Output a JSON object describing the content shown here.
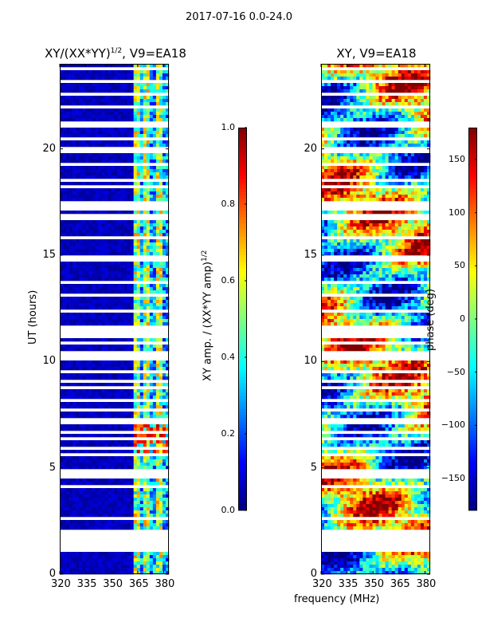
{
  "suptitle": "2017-07-16 0.0-24.0",
  "chart_data": [
    {
      "type": "heatmap",
      "title": "XY/(XX*YY)^1/2, V9=EA18",
      "title_main": "XY/(XX*YY)",
      "title_sup": "1/2",
      "title_tail": ", V9=EA18",
      "xlabel": "frequency (MHz)",
      "ylabel": "UT (hours)",
      "x_ticks": [
        "320",
        "335",
        "350",
        "365",
        "380"
      ],
      "y_ticks": [
        "0",
        "5",
        "10",
        "15",
        "20"
      ],
      "xlim": [
        320,
        383
      ],
      "ylim": [
        0,
        24
      ],
      "colorbar": {
        "label": "XY amp. / (XX*YY amp)^1/2",
        "label_main": "XY amp. / (XX*YY amp)",
        "label_sup": "1/2",
        "ticks": [
          "0.0",
          "0.2",
          "0.4",
          "0.6",
          "0.8",
          "1.0"
        ],
        "range": [
          0.0,
          1.0
        ],
        "colormap": "jet"
      }
    },
    {
      "type": "heatmap",
      "title": "XY, V9=EA18",
      "xlabel": "frequency (MHz)",
      "ylabel": "",
      "x_ticks": [
        "320",
        "335",
        "350",
        "365",
        "380"
      ],
      "y_ticks": [
        "0",
        "5",
        "10",
        "15",
        "20"
      ],
      "xlim": [
        320,
        383
      ],
      "ylim": [
        0,
        24
      ],
      "colorbar": {
        "label": "phase (deg)",
        "ticks": [
          "−150",
          "−100",
          "−50",
          "0",
          "50",
          "100",
          "150"
        ],
        "range": [
          -180,
          180
        ],
        "colormap": "jet"
      }
    }
  ],
  "xlabel_shared": "frequency (MHz)"
}
